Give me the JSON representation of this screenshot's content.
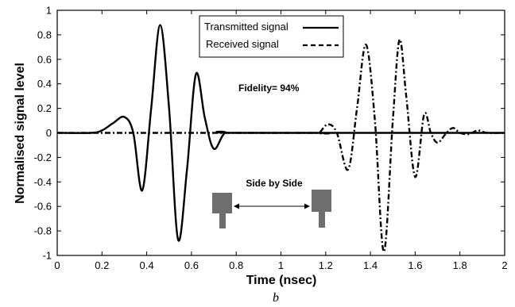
{
  "chart_data": {
    "type": "line",
    "title": "",
    "xlabel": "Time (nsec)",
    "ylabel": "Normalised signal level",
    "xlim": [
      0,
      2
    ],
    "ylim": [
      -1,
      1
    ],
    "x_ticks": [
      "0",
      "0.2",
      "0.4",
      "0.6",
      "0.8",
      "1",
      "1.2",
      "1.4",
      "1.6",
      "1.8",
      "2"
    ],
    "y_ticks": [
      "1",
      "0.8",
      "0.6",
      "0.4",
      "0.2",
      "0",
      "-0.2",
      "-0.4",
      "-0.6",
      "-0.8",
      "-1"
    ],
    "grid": false,
    "legend_position": "top-center",
    "series": [
      {
        "name": "Transmitted signal",
        "style": "solid",
        "color": "#000000",
        "x": [
          0,
          0.15,
          0.2,
          0.25,
          0.3,
          0.34,
          0.38,
          0.42,
          0.46,
          0.5,
          0.54,
          0.58,
          0.62,
          0.66,
          0.7,
          0.75,
          0.82,
          2.0
        ],
        "y": [
          0,
          0,
          0.02,
          0.08,
          0.13,
          0.0,
          -0.47,
          0.2,
          0.88,
          0.2,
          -0.87,
          -0.3,
          0.48,
          0.12,
          -0.13,
          0.0,
          0.0,
          0.0
        ]
      },
      {
        "name": "Received signal",
        "style": "dashed",
        "color": "#000000",
        "x": [
          0,
          0.15,
          1.14,
          1.17,
          1.21,
          1.25,
          1.3,
          1.34,
          1.38,
          1.42,
          1.46,
          1.5,
          1.53,
          1.56,
          1.6,
          1.64,
          1.67,
          1.7,
          1.74,
          1.77,
          1.8,
          1.84,
          1.88,
          1.92,
          2.0
        ],
        "y": [
          0,
          0,
          0,
          0.0,
          0.07,
          0.0,
          -0.3,
          0.2,
          0.72,
          0.1,
          -0.97,
          0.1,
          0.76,
          0.3,
          -0.36,
          0.15,
          0.0,
          -0.08,
          0.0,
          0.04,
          0.0,
          -0.01,
          0.02,
          0.0,
          0.0
        ]
      }
    ],
    "annotations": {
      "fidelity": "Fidelity= 94%",
      "configuration": "Side by Side"
    },
    "caption": "b"
  }
}
